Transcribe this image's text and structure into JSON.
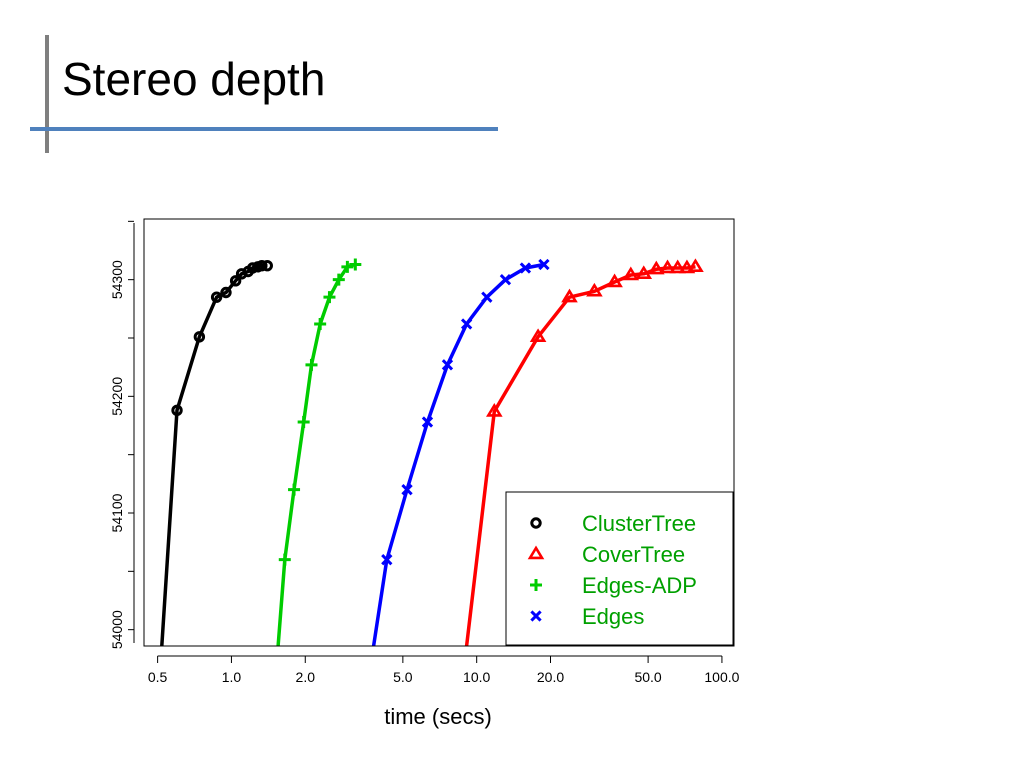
{
  "slide": {
    "title": "Stereo depth"
  },
  "chart_data": {
    "type": "line",
    "title": "",
    "xlabel": "time (secs)",
    "ylabel": "",
    "x_scale": "log",
    "xlim": [
      0.44,
      112
    ],
    "ylim": [
      53986,
      54352
    ],
    "x_ticks": [
      0.5,
      1.0,
      2.0,
      5.0,
      10.0,
      20.0,
      50.0,
      100.0
    ],
    "x_tick_labels": [
      "0.5",
      "1.0",
      "2.0",
      "5.0",
      "10.0",
      "20.0",
      "50.0",
      "100.0"
    ],
    "y_ticks": [
      54000,
      54100,
      54200,
      54300
    ],
    "y_tick_labels": [
      "54000",
      "54100",
      "54200",
      "54300"
    ],
    "grid": false,
    "legend_position": "bottom-right",
    "series": [
      {
        "name": "ClusterTree",
        "color": "#000000",
        "marker": "circle",
        "x": [
          0.52,
          0.6,
          0.74,
          0.87,
          0.95,
          1.04,
          1.1,
          1.17,
          1.22,
          1.28,
          1.33,
          1.4
        ],
        "y": [
          53986,
          54188,
          54251,
          54285,
          54289,
          54299,
          54305,
          54307,
          54310,
          54311,
          54312,
          54312
        ],
        "marker_count": 11
      },
      {
        "name": "CoverTree",
        "color": "#ff0000",
        "marker": "triangle",
        "x": [
          9.1,
          11.8,
          17.8,
          23.9,
          30.2,
          36.5,
          42.5,
          48.0,
          54.0,
          60.0,
          66.0,
          72.0,
          78.0
        ],
        "y": [
          53986,
          54187,
          54251,
          54285,
          54290,
          54298,
          54304,
          54305,
          54309,
          54310,
          54310,
          54310,
          54311
        ],
        "marker_count": 12
      },
      {
        "name": "Edges-ADP",
        "color": "#00cc00",
        "marker": "plus",
        "x": [
          1.55,
          1.65,
          1.8,
          1.97,
          2.12,
          2.3,
          2.51,
          2.74,
          2.97,
          3.2
        ],
        "y": [
          53986,
          54060,
          54120,
          54178,
          54227,
          54262,
          54285,
          54300,
          54311,
          54313
        ],
        "marker_count": 9
      },
      {
        "name": "Edges",
        "color": "#0000ff",
        "marker": "x",
        "x": [
          3.8,
          4.3,
          5.2,
          6.3,
          7.6,
          9.1,
          11.0,
          13.1,
          15.8,
          18.8
        ],
        "y": [
          53986,
          54060,
          54120,
          54178,
          54227,
          54262,
          54285,
          54300,
          54310,
          54313
        ],
        "marker_count": 9
      }
    ]
  }
}
